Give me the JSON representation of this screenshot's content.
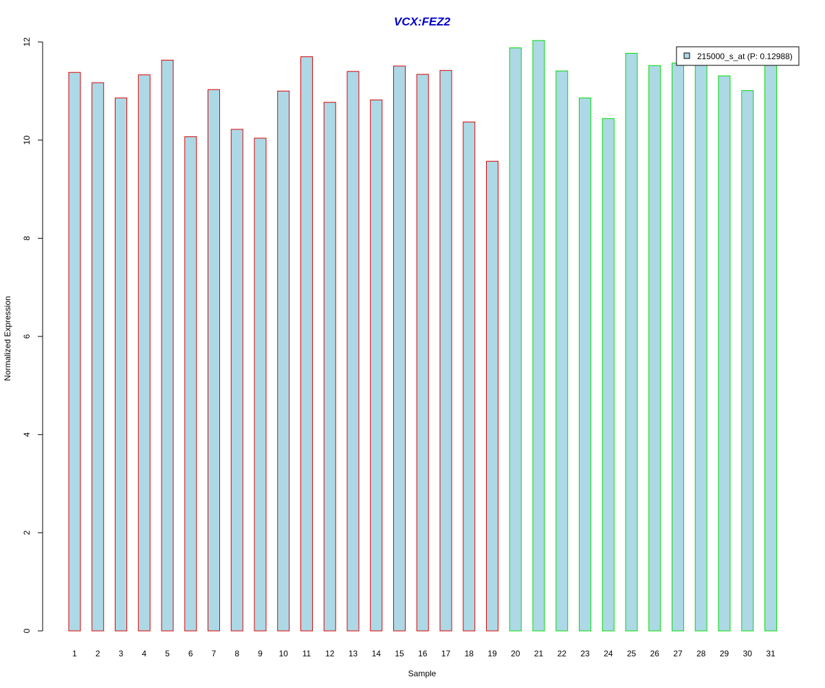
{
  "chart_data": {
    "type": "bar",
    "title": "VCX:FEZ2",
    "xlabel": "Sample",
    "ylabel": "Normalized Expression",
    "ylim": [
      0,
      12
    ],
    "yticks": [
      "0",
      "2",
      "4",
      "6",
      "8",
      "10",
      "12"
    ],
    "categories": [
      "1",
      "2",
      "3",
      "4",
      "5",
      "6",
      "7",
      "8",
      "9",
      "10",
      "11",
      "12",
      "13",
      "14",
      "15",
      "16",
      "17",
      "18",
      "19",
      "20",
      "21",
      "22",
      "23",
      "24",
      "25",
      "26",
      "27",
      "28",
      "29",
      "30",
      "31"
    ],
    "series": [
      {
        "name": "215000_s_at (P: 0.12988)",
        "values": [
          11.38,
          11.17,
          10.86,
          11.33,
          11.63,
          10.07,
          11.03,
          10.22,
          10.04,
          11.0,
          11.7,
          10.77,
          11.4,
          10.82,
          11.51,
          11.34,
          11.42,
          10.37,
          9.57,
          11.88,
          12.03,
          11.41,
          10.86,
          10.44,
          11.77,
          11.52,
          11.57,
          11.55,
          11.31,
          11.01,
          11.56
        ]
      }
    ],
    "groups": [
      {
        "from": 1,
        "to": 19,
        "border_color": "#dd0000"
      },
      {
        "from": 20,
        "to": 31,
        "border_color": "#00dd00"
      }
    ],
    "bar_fill": "#add8e6",
    "title_color": "#0000cc",
    "grid": false,
    "legend_position": "top-right"
  }
}
